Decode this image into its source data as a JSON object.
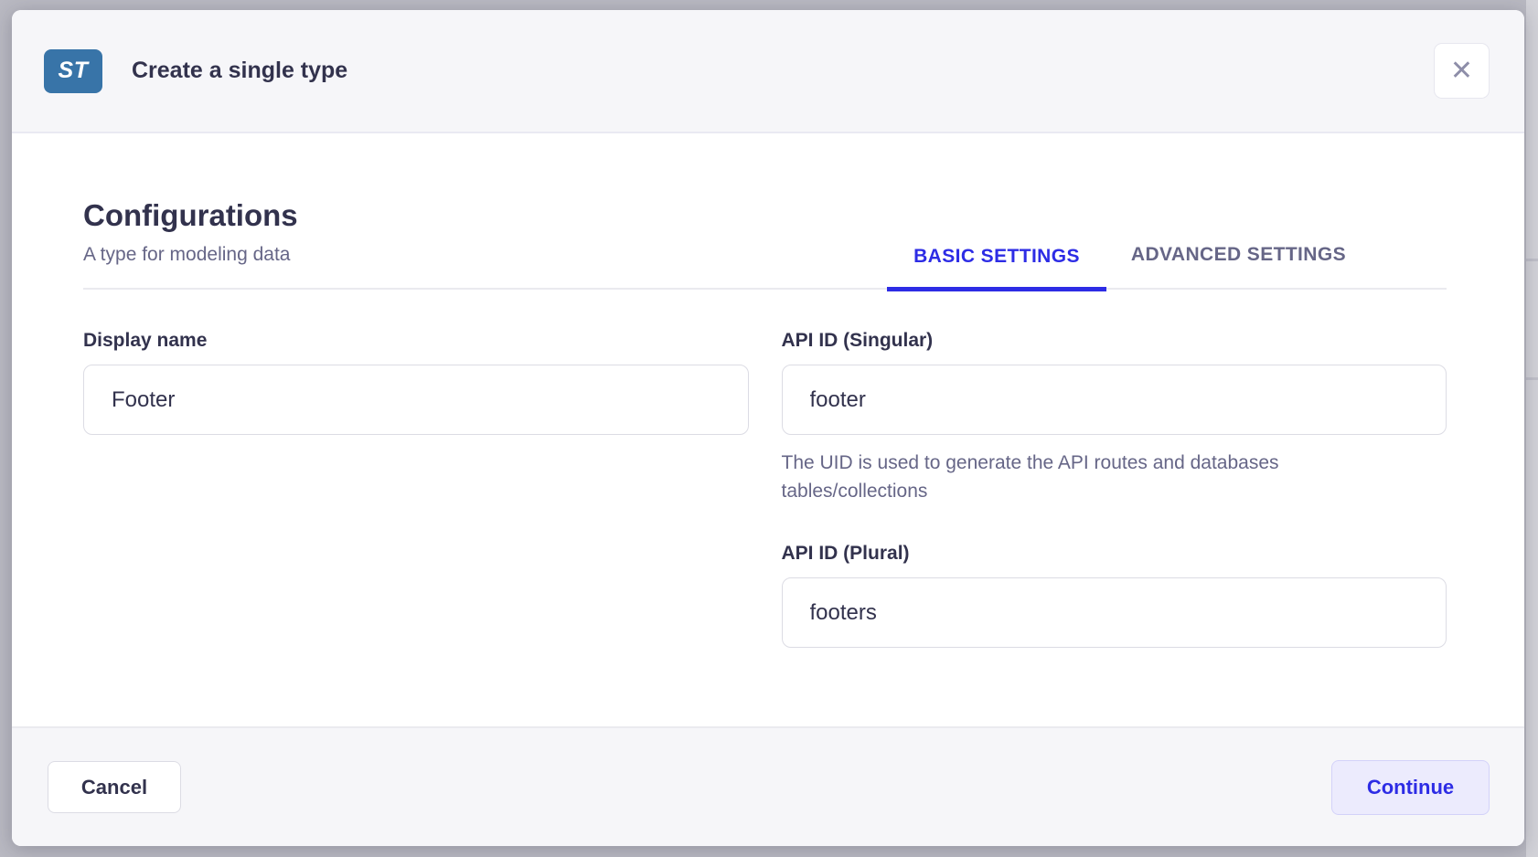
{
  "modal": {
    "badge_label": "ST",
    "title": "Create a single type",
    "close_icon_glyph": "✕"
  },
  "content": {
    "heading": "Configurations",
    "subheading": "A type for modeling data",
    "tabs": [
      {
        "label": "BASIC SETTINGS",
        "active": true
      },
      {
        "label": "ADVANCED SETTINGS",
        "active": false
      }
    ],
    "fields": {
      "display_name": {
        "label": "Display name",
        "value": "Footer"
      },
      "api_id_singular": {
        "label": "API ID (Singular)",
        "value": "footer",
        "hint": "The UID is used to generate the API routes and databases tables/collections"
      },
      "api_id_plural": {
        "label": "API ID (Plural)",
        "value": "footers"
      }
    }
  },
  "footer": {
    "cancel_label": "Cancel",
    "continue_label": "Continue"
  },
  "colors": {
    "accent": "#2d2ce5",
    "badge_background": "#3874a8",
    "heading_text": "#32324d",
    "muted_text": "#666687",
    "surface_gray": "#f6f6f9",
    "input_border": "#dcdce4",
    "continue_background": "#ecebfd",
    "backdrop": "#b9b9c2"
  }
}
